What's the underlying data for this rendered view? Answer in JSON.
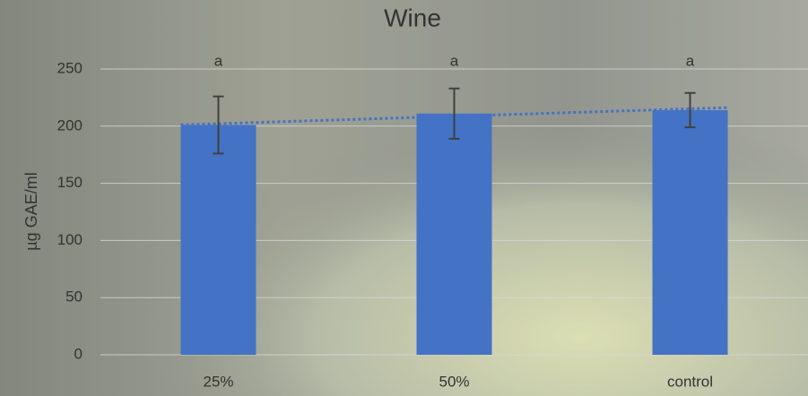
{
  "chart_data": {
    "type": "bar",
    "title": "Wine",
    "y_label": "µg GAE/ml",
    "categories": [
      "25%",
      "50%",
      "control"
    ],
    "values": [
      201,
      211,
      214
    ],
    "errors": [
      25,
      22,
      15
    ],
    "annotations": [
      "a",
      "a",
      "a"
    ],
    "color": "#4472c4",
    "trendline": "linear",
    "trendline_color": "#4472c4",
    "ylim": [
      0,
      250
    ],
    "yticks": [
      0,
      50,
      100,
      150,
      200,
      250
    ],
    "grid": true
  }
}
